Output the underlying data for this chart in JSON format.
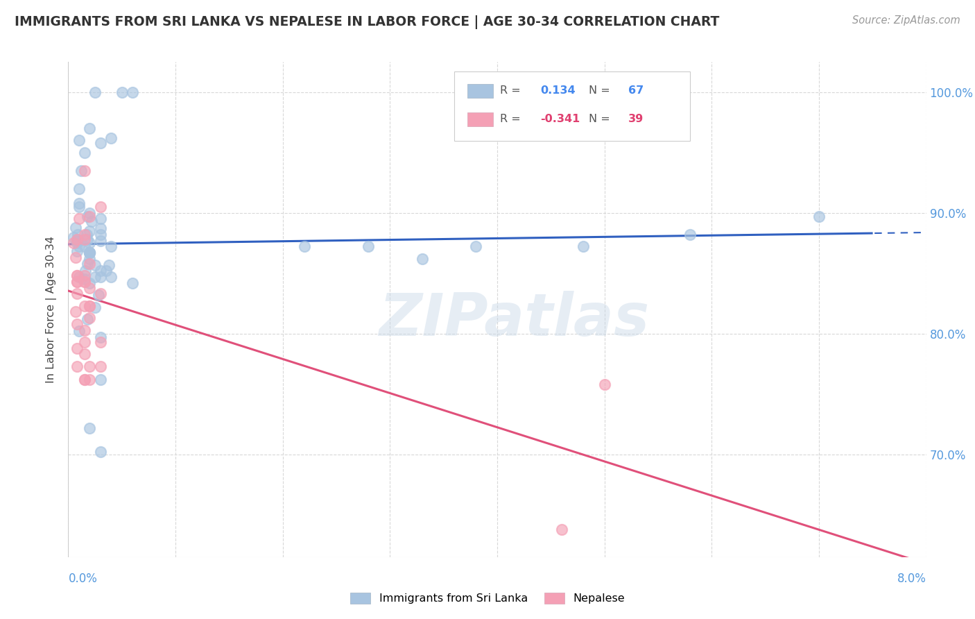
{
  "title": "IMMIGRANTS FROM SRI LANKA VS NEPALESE IN LABOR FORCE | AGE 30-34 CORRELATION CHART",
  "source": "Source: ZipAtlas.com",
  "ylabel": "In Labor Force | Age 30-34",
  "right_yticks": [
    0.7,
    0.8,
    0.9,
    1.0
  ],
  "right_yticklabels": [
    "70.0%",
    "80.0%",
    "90.0%",
    "100.0%"
  ],
  "xlim": [
    0.0,
    0.08
  ],
  "ylim": [
    0.615,
    1.025
  ],
  "sri_lanka_R": 0.134,
  "sri_lanka_N": 67,
  "nepalese_R": -0.341,
  "nepalese_N": 39,
  "sri_lanka_color": "#a8c4e0",
  "nepalese_color": "#f4a0b5",
  "trend_sri_lanka_color": "#3060c0",
  "trend_nepalese_color": "#e0507a",
  "watermark": "ZIPatlas",
  "sri_lanka_scatter_x": [
    0.0005,
    0.001,
    0.0015,
    0.001,
    0.002,
    0.0025,
    0.002,
    0.003,
    0.005,
    0.006,
    0.0008,
    0.0012,
    0.002,
    0.003,
    0.004,
    0.0007,
    0.0015,
    0.002,
    0.003,
    0.001,
    0.0018,
    0.0022,
    0.0008,
    0.0015,
    0.0009,
    0.002,
    0.003,
    0.0018,
    0.0008,
    0.0016,
    0.0025,
    0.003,
    0.0038,
    0.001,
    0.0018,
    0.0028,
    0.0009,
    0.0017,
    0.0009,
    0.0025,
    0.0018,
    0.003,
    0.0025,
    0.004,
    0.002,
    0.003,
    0.0035,
    0.002,
    0.001,
    0.002,
    0.003,
    0.001,
    0.002,
    0.022,
    0.002,
    0.003,
    0.006,
    0.001,
    0.002,
    0.003,
    0.004,
    0.028,
    0.033,
    0.038,
    0.048,
    0.058,
    0.07
  ],
  "sri_lanka_scatter_y": [
    0.88,
    0.92,
    0.95,
    0.96,
    0.97,
    1.0,
    0.885,
    0.895,
    1.0,
    1.0,
    0.875,
    0.935,
    0.9,
    0.958,
    0.962,
    0.888,
    0.845,
    0.875,
    0.882,
    0.905,
    0.878,
    0.893,
    0.878,
    0.872,
    0.877,
    0.867,
    0.877,
    0.858,
    0.868,
    0.852,
    0.847,
    0.887,
    0.857,
    0.908,
    0.897,
    0.832,
    0.877,
    0.882,
    0.882,
    0.822,
    0.812,
    0.797,
    0.857,
    0.872,
    0.867,
    0.852,
    0.852,
    0.862,
    0.847,
    0.867,
    0.762,
    0.872,
    0.867,
    0.872,
    0.842,
    0.847,
    0.842,
    0.802,
    0.722,
    0.702,
    0.847,
    0.872,
    0.862,
    0.872,
    0.872,
    0.882,
    0.897
  ],
  "nepalese_scatter_x": [
    0.0005,
    0.001,
    0.0015,
    0.0008,
    0.0015,
    0.002,
    0.003,
    0.0007,
    0.0015,
    0.002,
    0.0008,
    0.0015,
    0.0008,
    0.0015,
    0.002,
    0.0007,
    0.0015,
    0.002,
    0.003,
    0.0008,
    0.0015,
    0.002,
    0.0008,
    0.0015,
    0.0008,
    0.002,
    0.0015,
    0.003,
    0.0008,
    0.0015,
    0.002,
    0.003,
    0.0008,
    0.0015,
    0.002,
    0.0008,
    0.0015,
    0.05,
    0.046
  ],
  "nepalese_scatter_y": [
    0.875,
    0.895,
    0.935,
    0.878,
    0.882,
    0.897,
    0.905,
    0.863,
    0.878,
    0.858,
    0.848,
    0.843,
    0.843,
    0.823,
    0.838,
    0.818,
    0.803,
    0.823,
    0.833,
    0.808,
    0.793,
    0.813,
    0.843,
    0.762,
    0.773,
    0.773,
    0.783,
    0.773,
    0.833,
    0.843,
    0.823,
    0.793,
    0.788,
    0.762,
    0.762,
    0.848,
    0.848,
    0.758,
    0.638
  ]
}
